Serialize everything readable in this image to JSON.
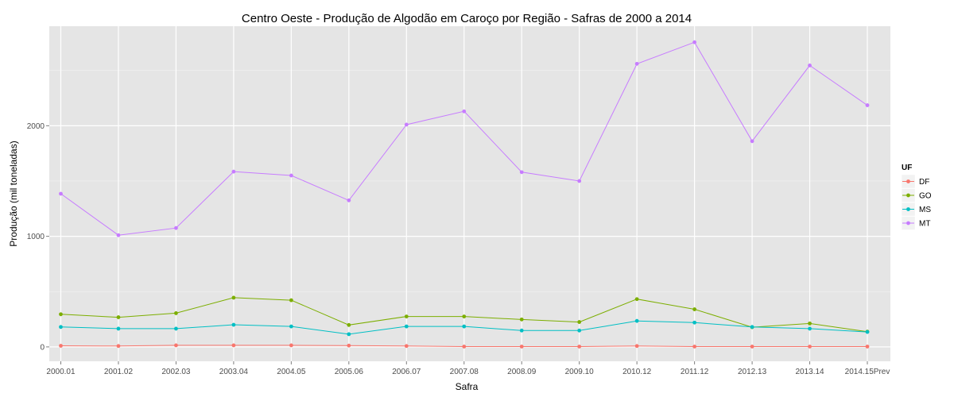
{
  "chart_data": {
    "type": "line",
    "title": "Centro Oeste  - Produção de Algodão em Caroço por Região - Safras de 2000 a 2014",
    "xlabel": "Safra",
    "ylabel": "Produção (mil toneladas)",
    "categories": [
      "2000.01",
      "2001.02",
      "2002.03",
      "2003.04",
      "2004.05",
      "2005.06",
      "2006.07",
      "2007.08",
      "2008.09",
      "2009.10",
      "2010.12",
      "2011.12",
      "2012.13",
      "2013.14",
      "2014.15Prev"
    ],
    "y_ticks": [
      0,
      1000,
      2000
    ],
    "ylim": [
      -130,
      2900
    ],
    "grid": true,
    "legend": {
      "title": "UF",
      "position": "right"
    },
    "series": [
      {
        "name": "DF",
        "color": "#F8766D",
        "values": [
          10,
          8,
          14,
          14,
          14,
          12,
          8,
          3,
          3,
          3,
          8,
          3,
          3,
          3,
          3
        ]
      },
      {
        "name": "GO",
        "color": "#7CAE00",
        "values": [
          295,
          268,
          305,
          445,
          422,
          198,
          275,
          275,
          248,
          225,
          432,
          340,
          178,
          212,
          138
        ]
      },
      {
        "name": "MS",
        "color": "#00BFC4",
        "values": [
          180,
          165,
          165,
          200,
          185,
          115,
          185,
          185,
          148,
          148,
          235,
          220,
          180,
          165,
          135
        ]
      },
      {
        "name": "MT",
        "color": "#C77CFF",
        "values": [
          1385,
          1010,
          1075,
          1585,
          1550,
          1325,
          2010,
          2130,
          1580,
          1500,
          2560,
          2755,
          1860,
          2545,
          2185
        ]
      }
    ]
  }
}
